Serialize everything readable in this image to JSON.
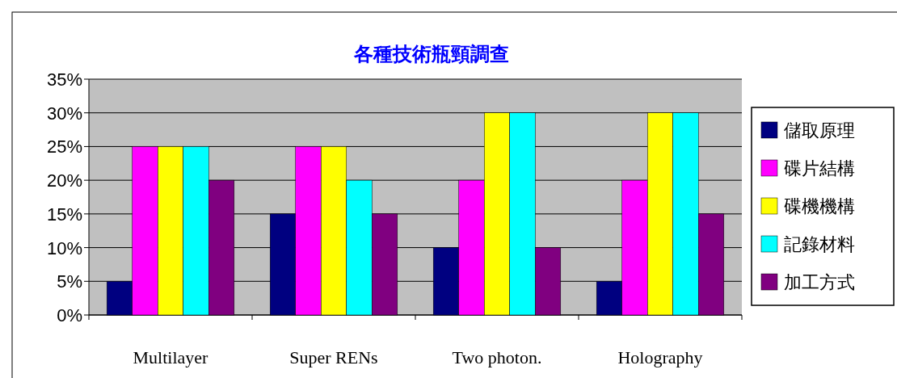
{
  "chart_data": {
    "type": "bar",
    "title": "各種技術瓶頸調查",
    "categories": [
      "Multilayer",
      "Super RENs",
      "Two photon.",
      "Holography"
    ],
    "series": [
      {
        "name": "儲取原理",
        "color": "#000080",
        "values": [
          5,
          15,
          10,
          5
        ]
      },
      {
        "name": "碟片結構",
        "color": "#ff00ff",
        "values": [
          25,
          25,
          20,
          20
        ]
      },
      {
        "name": "碟機機構",
        "color": "#ffff00",
        "values": [
          25,
          25,
          30,
          30
        ]
      },
      {
        "name": "記錄材料",
        "color": "#00ffff",
        "values": [
          25,
          20,
          30,
          30
        ]
      },
      {
        "name": "加工方式",
        "color": "#800080",
        "values": [
          20,
          15,
          10,
          15
        ]
      }
    ],
    "ylim": [
      0,
      35
    ],
    "yticks": [
      {
        "value": 0,
        "label": "0%"
      },
      {
        "value": 5,
        "label": "5%"
      },
      {
        "value": 10,
        "label": "10%"
      },
      {
        "value": 15,
        "label": "15%"
      },
      {
        "value": 20,
        "label": "20%"
      },
      {
        "value": 25,
        "label": "25%"
      },
      {
        "value": 30,
        "label": "30%"
      },
      {
        "value": 35,
        "label": "35%"
      }
    ],
    "grid": "y",
    "legend": "right"
  }
}
